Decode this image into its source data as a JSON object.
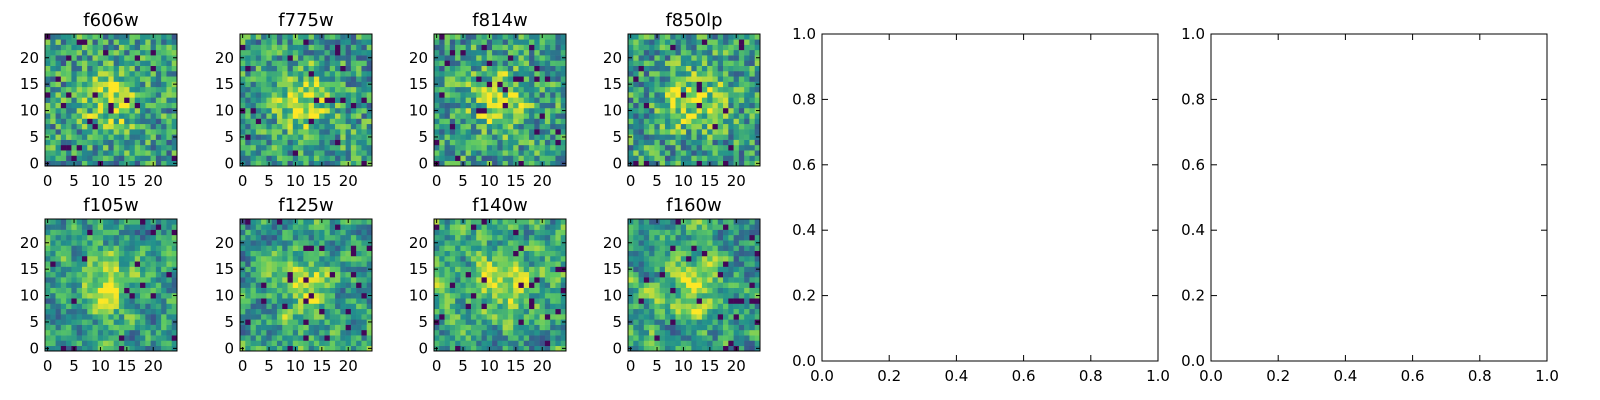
{
  "figure": {
    "panels": [
      {
        "title": "f606w",
        "seed": 606
      },
      {
        "title": "f775w",
        "seed": 775
      },
      {
        "title": "f814w",
        "seed": 814
      },
      {
        "title": "f850lp",
        "seed": 850
      },
      {
        "title": "f105w",
        "seed": 105
      },
      {
        "title": "f125w",
        "seed": 125
      },
      {
        "title": "f140w",
        "seed": 140
      },
      {
        "title": "f160w",
        "seed": 160
      }
    ],
    "colormap": [
      "#440154",
      "#3b528b",
      "#21908d",
      "#5dc963",
      "#fde725"
    ]
  },
  "chart_data": [
    {
      "type": "heatmap",
      "title": "f606w",
      "grid": [
        25,
        25
      ],
      "xlim": [
        0,
        24
      ],
      "ylim": [
        0,
        24
      ],
      "xticks": [
        "0",
        "5",
        "10",
        "15",
        "20"
      ],
      "yticks": [
        "0",
        "5",
        "10",
        "15",
        "20"
      ]
    },
    {
      "type": "heatmap",
      "title": "f775w",
      "grid": [
        25,
        25
      ],
      "xlim": [
        0,
        24
      ],
      "ylim": [
        0,
        24
      ],
      "xticks": [
        "0",
        "5",
        "10",
        "15",
        "20"
      ],
      "yticks": [
        "0",
        "5",
        "10",
        "15",
        "20"
      ]
    },
    {
      "type": "heatmap",
      "title": "f814w",
      "grid": [
        25,
        25
      ],
      "xlim": [
        0,
        24
      ],
      "ylim": [
        0,
        24
      ],
      "xticks": [
        "0",
        "5",
        "10",
        "15",
        "20"
      ],
      "yticks": [
        "0",
        "5",
        "10",
        "15",
        "20"
      ]
    },
    {
      "type": "heatmap",
      "title": "f850lp",
      "grid": [
        25,
        25
      ],
      "xlim": [
        0,
        24
      ],
      "ylim": [
        0,
        24
      ],
      "xticks": [
        "0",
        "5",
        "10",
        "15",
        "20"
      ],
      "yticks": [
        "0",
        "5",
        "10",
        "15",
        "20"
      ]
    },
    {
      "type": "heatmap",
      "title": "f105w",
      "grid": [
        25,
        25
      ],
      "xlim": [
        0,
        24
      ],
      "ylim": [
        0,
        24
      ],
      "xticks": [
        "0",
        "5",
        "10",
        "15",
        "20"
      ],
      "yticks": [
        "0",
        "5",
        "10",
        "15",
        "20"
      ]
    },
    {
      "type": "heatmap",
      "title": "f125w",
      "grid": [
        25,
        25
      ],
      "xlim": [
        0,
        24
      ],
      "ylim": [
        0,
        24
      ],
      "xticks": [
        "0",
        "5",
        "10",
        "15",
        "20"
      ],
      "yticks": [
        "0",
        "5",
        "10",
        "15",
        "20"
      ]
    },
    {
      "type": "heatmap",
      "title": "f140w",
      "grid": [
        25,
        25
      ],
      "xlim": [
        0,
        24
      ],
      "ylim": [
        0,
        24
      ],
      "xticks": [
        "0",
        "5",
        "10",
        "15",
        "20"
      ],
      "yticks": [
        "0",
        "5",
        "10",
        "15",
        "20"
      ]
    },
    {
      "type": "heatmap",
      "title": "f160w",
      "grid": [
        25,
        25
      ],
      "xlim": [
        0,
        24
      ],
      "ylim": [
        0,
        24
      ],
      "xticks": [
        "0",
        "5",
        "10",
        "15",
        "20"
      ],
      "yticks": [
        "0",
        "5",
        "10",
        "15",
        "20"
      ]
    },
    {
      "type": "line",
      "title": "",
      "xlim": [
        0.0,
        1.0
      ],
      "ylim": [
        0.0,
        1.0
      ],
      "xticks": [
        "0.0",
        "0.2",
        "0.4",
        "0.6",
        "0.8",
        "1.0"
      ],
      "yticks": [
        "0.0",
        "0.2",
        "0.4",
        "0.6",
        "0.8",
        "1.0"
      ],
      "series": []
    },
    {
      "type": "line",
      "title": "",
      "xlim": [
        0.0,
        1.0
      ],
      "ylim": [
        0.0,
        1.0
      ],
      "xticks": [
        "0.0",
        "0.2",
        "0.4",
        "0.6",
        "0.8",
        "1.0"
      ],
      "yticks": [
        "0.0",
        "0.2",
        "0.4",
        "0.6",
        "0.8",
        "1.0"
      ],
      "series": []
    }
  ]
}
